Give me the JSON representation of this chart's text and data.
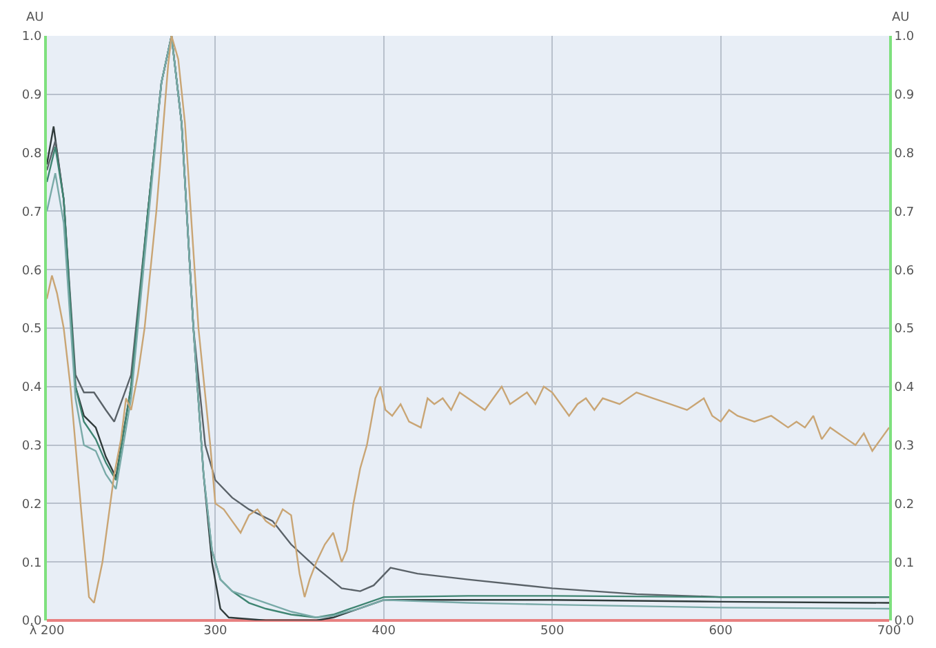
{
  "chart_data": {
    "type": "line",
    "ylabel": "AU",
    "y2label": "AU",
    "xlim": [
      200,
      700
    ],
    "xticks": [
      {
        "value": 200,
        "label": "λ 200"
      },
      300,
      400,
      500,
      600,
      700
    ],
    "ylim": [
      0,
      1
    ],
    "yticks": [
      {
        "value": 0,
        "label": "0.0"
      },
      0.1,
      0.2,
      0.3,
      0.4,
      0.5,
      0.6,
      0.7,
      0.8,
      0.9,
      {
        "value": 1,
        "label": "1.0"
      }
    ],
    "y2lim": [
      0,
      1
    ],
    "y2ticks": [
      {
        "value": 0,
        "label": "0.0"
      },
      0.1,
      0.2,
      0.3,
      0.4,
      0.5,
      0.6,
      0.7,
      0.8,
      0.9,
      {
        "value": 1,
        "label": "1.0"
      }
    ],
    "grid": true,
    "marker": "none",
    "line_style": "solid",
    "series": [
      {
        "color": "#2f3a3a",
        "x": [
          200,
          204,
          210,
          217,
          222,
          229,
          235,
          241,
          250,
          260,
          268,
          274,
          280,
          287,
          293,
          298,
          303,
          308,
          330,
          360,
          370,
          385,
          400,
          450,
          500,
          600,
          700
        ],
        "values": [
          0.78,
          0.845,
          0.72,
          0.4,
          0.35,
          0.33,
          0.28,
          0.245,
          0.4,
          0.7,
          0.92,
          1.0,
          0.85,
          0.5,
          0.25,
          0.1,
          0.02,
          0.005,
          0.0,
          0.0,
          0.005,
          0.02,
          0.035,
          0.035,
          0.035,
          0.032,
          0.03
        ]
      },
      {
        "color": "#5a6268",
        "x": [
          200,
          205,
          210,
          217,
          222,
          228,
          235,
          240,
          250,
          260,
          268,
          274,
          280,
          287,
          294,
          300,
          310,
          320,
          334,
          345,
          360,
          375,
          386,
          394,
          404,
          420,
          450,
          500,
          550,
          600,
          650,
          700
        ],
        "values": [
          0.77,
          0.82,
          0.72,
          0.42,
          0.39,
          0.39,
          0.36,
          0.34,
          0.42,
          0.7,
          0.92,
          1.0,
          0.85,
          0.5,
          0.3,
          0.24,
          0.21,
          0.19,
          0.17,
          0.13,
          0.09,
          0.055,
          0.05,
          0.06,
          0.09,
          0.08,
          0.07,
          0.055,
          0.045,
          0.04,
          0.04,
          0.04
        ]
      },
      {
        "color": "#3f8572",
        "x": [
          200,
          205,
          210,
          217,
          222,
          229,
          235,
          241,
          250,
          260,
          268,
          274,
          280,
          287,
          293,
          298,
          303,
          310,
          320,
          330,
          345,
          360,
          370,
          385,
          400,
          450,
          500,
          600,
          700
        ],
        "values": [
          0.75,
          0.81,
          0.72,
          0.4,
          0.34,
          0.31,
          0.27,
          0.24,
          0.4,
          0.7,
          0.92,
          1.0,
          0.85,
          0.5,
          0.25,
          0.12,
          0.07,
          0.05,
          0.03,
          0.02,
          0.01,
          0.005,
          0.01,
          0.025,
          0.04,
          0.042,
          0.042,
          0.04,
          0.04
        ]
      },
      {
        "color": "#79aaa8",
        "x": [
          200,
          205,
          210,
          217,
          222,
          229,
          235,
          241,
          250,
          260,
          268,
          274,
          280,
          287,
          293,
          298,
          303,
          310,
          320,
          330,
          345,
          360,
          370,
          385,
          400,
          450,
          500,
          600,
          700
        ],
        "values": [
          0.7,
          0.765,
          0.68,
          0.38,
          0.3,
          0.29,
          0.25,
          0.225,
          0.38,
          0.68,
          0.92,
          1.0,
          0.85,
          0.5,
          0.25,
          0.12,
          0.07,
          0.05,
          0.04,
          0.03,
          0.015,
          0.005,
          0.008,
          0.02,
          0.035,
          0.03,
          0.027,
          0.022,
          0.02
        ]
      },
      {
        "color": "#c9a574",
        "x": [
          200,
          203,
          206,
          210,
          214,
          220,
          225,
          228,
          233,
          240,
          244,
          247,
          250,
          254,
          258,
          265,
          272,
          274,
          278,
          282,
          290,
          297,
          300,
          305,
          310,
          315,
          320,
          325,
          330,
          335,
          340,
          345,
          350,
          353,
          356,
          360,
          365,
          370,
          375,
          378,
          382,
          386,
          390,
          395,
          398,
          401,
          405,
          410,
          415,
          422,
          426,
          430,
          435,
          440,
          445,
          450,
          455,
          460,
          465,
          470,
          475,
          480,
          485,
          490,
          495,
          500,
          505,
          510,
          515,
          520,
          525,
          530,
          540,
          550,
          560,
          570,
          580,
          590,
          595,
          600,
          605,
          610,
          620,
          630,
          640,
          645,
          650,
          655,
          660,
          665,
          670,
          675,
          680,
          685,
          690,
          695,
          700
        ],
        "values": [
          0.55,
          0.59,
          0.56,
          0.5,
          0.4,
          0.2,
          0.04,
          0.03,
          0.1,
          0.25,
          0.31,
          0.38,
          0.36,
          0.42,
          0.5,
          0.7,
          0.95,
          1.0,
          0.96,
          0.85,
          0.5,
          0.3,
          0.2,
          0.19,
          0.17,
          0.15,
          0.18,
          0.19,
          0.17,
          0.16,
          0.19,
          0.18,
          0.08,
          0.04,
          0.07,
          0.1,
          0.13,
          0.15,
          0.1,
          0.12,
          0.2,
          0.26,
          0.3,
          0.38,
          0.4,
          0.36,
          0.35,
          0.37,
          0.34,
          0.33,
          0.38,
          0.37,
          0.38,
          0.36,
          0.39,
          0.38,
          0.37,
          0.36,
          0.38,
          0.4,
          0.37,
          0.38,
          0.39,
          0.37,
          0.4,
          0.39,
          0.37,
          0.35,
          0.37,
          0.38,
          0.36,
          0.38,
          0.37,
          0.39,
          0.38,
          0.37,
          0.36,
          0.38,
          0.35,
          0.34,
          0.36,
          0.35,
          0.34,
          0.35,
          0.33,
          0.34,
          0.33,
          0.35,
          0.31,
          0.33,
          0.32,
          0.31,
          0.3,
          0.32,
          0.29,
          0.31,
          0.33
        ]
      }
    ]
  }
}
